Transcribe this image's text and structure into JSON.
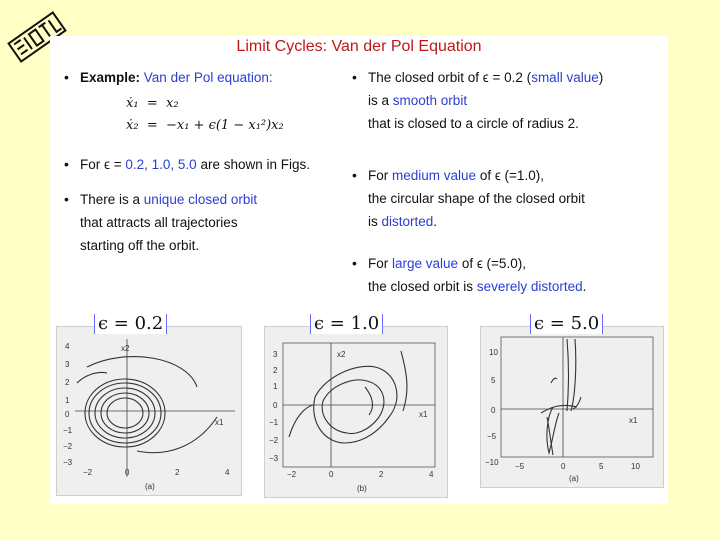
{
  "title": "Limit Cycles: Van der Pol Equation",
  "logo_text": "CSU",
  "left": {
    "example_label": "Example:",
    "example_name": "Van der Pol equation:",
    "eq1_lhs": "ẋ₁",
    "eq1_rhs": "x₂",
    "eq2_lhs": "ẋ₂",
    "eq2_rhs": "−x₁ + ϵ(1 − x₁²)x₂",
    "eq_equals": "=",
    "for_text": "For ϵ =",
    "for_values": "0.2, 1.0, 5.0",
    "for_tail": "are shown in Figs.",
    "unique_pre": "There is a",
    "unique_highlight": "unique closed orbit",
    "unique_line2": "that attracts all trajectories",
    "unique_line3": "starting off the orbit."
  },
  "right": {
    "b1_pre": "The closed orbit of ϵ = 0.2 (",
    "b1_highlight": "small value",
    "b1_post": ")",
    "b1_line2_pre": "is a",
    "b1_line2_highlight": "smooth orbit",
    "b1_line3": "that is closed to a circle of radius 2.",
    "b2_pre": "For",
    "b2_highlight": "medium value",
    "b2_post": "of ϵ (=1.0),",
    "b2_line2": "the circular shape of the closed orbit",
    "b2_line3_pre": "is",
    "b2_line3_highlight": "distorted",
    "b2_line3_post": ".",
    "b3_pre": "For",
    "b3_highlight": "large value",
    "b3_post": "of ϵ (=5.0),",
    "b3_line2_pre": "the closed orbit is",
    "b3_line2_highlight": "severely distorted",
    "b3_line2_post": "."
  },
  "plots": [
    {
      "eps_label": "ϵ = 0.2",
      "caption": "(a)",
      "xlabel": "x1",
      "ylabel": "x2",
      "xticks": [
        "−2",
        "0",
        "2",
        "4"
      ],
      "yticks": [
        "4",
        "3",
        "2",
        "1",
        "0",
        "−1",
        "−2",
        "−3"
      ]
    },
    {
      "eps_label": "ϵ = 1.0",
      "caption": "(b)",
      "xlabel": "x1",
      "ylabel": "x2",
      "xticks": [
        "−2",
        "0",
        "2",
        "4"
      ],
      "yticks": [
        "3",
        "2",
        "1",
        "0",
        "−1",
        "−2",
        "−3"
      ]
    },
    {
      "eps_label": "ϵ = 5.0",
      "caption": "(a)",
      "xlabel": "x1",
      "ylabel": "",
      "xticks": [
        "−5",
        "0",
        "5",
        "10"
      ],
      "yticks": [
        "10",
        "5",
        "0",
        "−5",
        "−10"
      ]
    }
  ],
  "colors": {
    "background": "#ffffc6",
    "title": "#c01818",
    "highlight": "#2a3fd0"
  }
}
